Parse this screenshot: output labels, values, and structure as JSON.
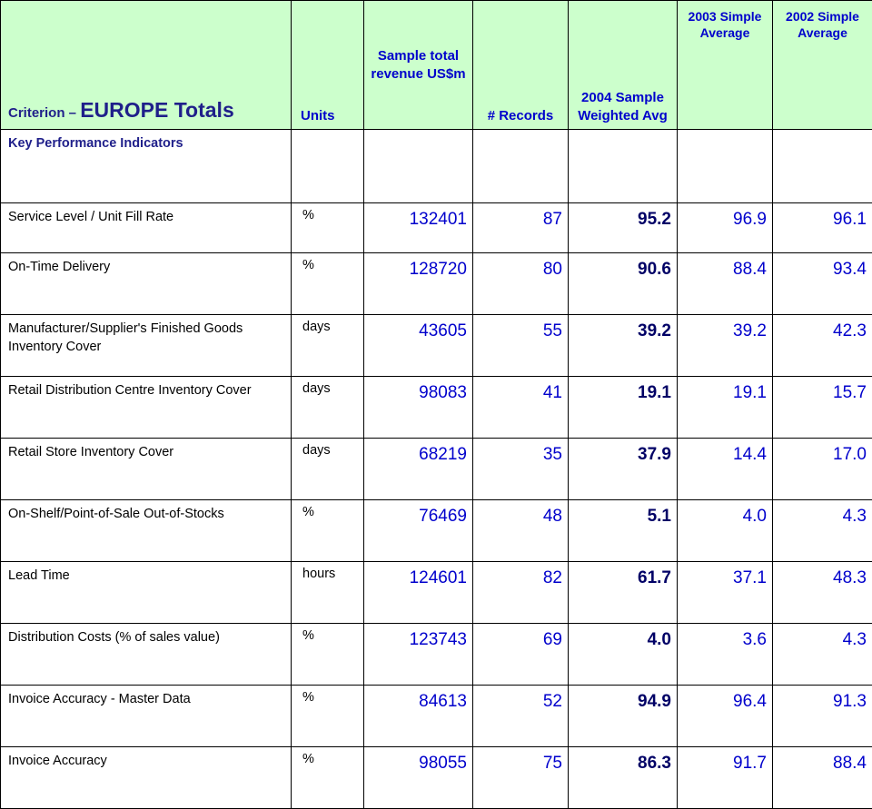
{
  "header": {
    "criterion_prefix": "Criterion –",
    "criterion_main": "EUROPE Totals",
    "units": "Units",
    "revenue": "Sample total revenue US$m",
    "records": "# Records",
    "avg2004": "2004 Sample Weighted Avg",
    "avg2003": "2003 Simple Average",
    "avg2002": "2002 Simple Average"
  },
  "kpi_label": "Key Performance Indicators",
  "rows": [
    {
      "criterion": "Service Level / Unit Fill Rate",
      "units": "%",
      "revenue": "132401",
      "records": "87",
      "avg2004": "95.2",
      "avg2003": "96.9",
      "avg2002": "96.1"
    },
    {
      "criterion": "On-Time Delivery",
      "units": "%",
      "revenue": "128720",
      "records": "80",
      "avg2004": "90.6",
      "avg2003": "88.4",
      "avg2002": "93.4"
    },
    {
      "criterion": "Manufacturer/Supplier's Finished Goods Inventory Cover",
      "units": "days",
      "revenue": "43605",
      "records": "55",
      "avg2004": "39.2",
      "avg2003": "39.2",
      "avg2002": "42.3"
    },
    {
      "criterion": "Retail Distribution Centre Inventory Cover",
      "units": "days",
      "revenue": "98083",
      "records": "41",
      "avg2004": "19.1",
      "avg2003": "19.1",
      "avg2002": "15.7"
    },
    {
      "criterion": "Retail Store Inventory Cover",
      "units": "days",
      "revenue": "68219",
      "records": "35",
      "avg2004": "37.9",
      "avg2003": "14.4",
      "avg2002": "17.0"
    },
    {
      "criterion": "On-Shelf/Point-of-Sale Out-of-Stocks",
      "units": "%",
      "revenue": "76469",
      "records": "48",
      "avg2004": "5.1",
      "avg2003": "4.0",
      "avg2002": "4.3"
    },
    {
      "criterion": "Lead Time",
      "units": "hours",
      "revenue": "124601",
      "records": "82",
      "avg2004": "61.7",
      "avg2003": "37.1",
      "avg2002": "48.3"
    },
    {
      "criterion": "Distribution Costs (% of sales value)",
      "units": "%",
      "revenue": "123743",
      "records": "69",
      "avg2004": "4.0",
      "avg2003": "3.6",
      "avg2002": "4.3"
    },
    {
      "criterion": "Invoice Accuracy - Master Data",
      "units": "%",
      "revenue": "84613",
      "records": "52",
      "avg2004": "94.9",
      "avg2003": "96.4",
      "avg2002": "91.3"
    },
    {
      "criterion": "Invoice Accuracy",
      "units": "%",
      "revenue": "98055",
      "records": "75",
      "avg2004": "86.3",
      "avg2003": "91.7",
      "avg2002": "88.4"
    }
  ]
}
